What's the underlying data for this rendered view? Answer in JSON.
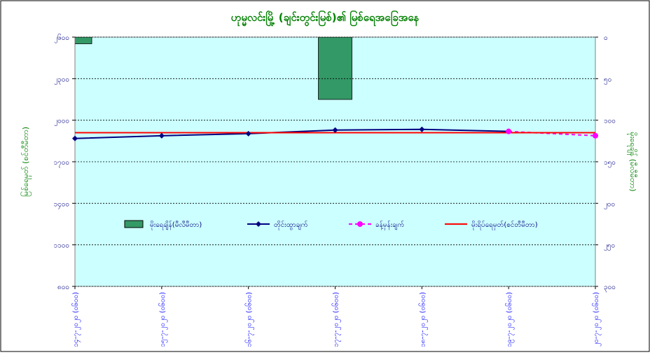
{
  "chart_data": {
    "type": "combo",
    "title": "ဟုမ္မလင်းမြို့ (ချင်းတွင်းမြစ်)၏ မြစ်ရေအခြေအနေ",
    "y_label": "မြစ်ရေမှတ် (စင်တီမီတာ)",
    "y2_label": "မိုးရေချိန် (မီလီမီတာ)",
    "categories": [
      "၁၄-၇-၂၀၂၀ (၀၆၀၀)",
      "၁၅-၇-၂၀၂၀ (၀၆၀၀)",
      "၁၆-၇-၂၀၂၀ (၀၆၀၀)",
      "၁၇-၇-၂၀၂၀ (၀၆၀၀)",
      "၁၈-၇-၂၀၂၀ (၀၆၀၀)",
      "၁၉-၇-၂၀၂၀ (၀၆၀၀)",
      "၂၀-၇-၂၀၂၀ (၀၆၀၀)"
    ],
    "ylim": [
      800,
      2600
    ],
    "yticks": [
      {
        "value": 800,
        "label": "၈၀၀"
      },
      {
        "value": 1100,
        "label": "၁၁၀၀"
      },
      {
        "value": 1400,
        "label": "၁၄၀၀"
      },
      {
        "value": 1700,
        "label": "၁၇၀၀"
      },
      {
        "value": 2000,
        "label": "၂၀၀၀"
      },
      {
        "value": 2300,
        "label": "၂၃၀၀"
      },
      {
        "value": 2600,
        "label": "၂၆၀၀"
      }
    ],
    "y2lim": [
      300,
      0
    ],
    "y2ticks": [
      {
        "value": 0,
        "label": "၀"
      },
      {
        "value": 50,
        "label": "၅၀"
      },
      {
        "value": 100,
        "label": "၁၀၀"
      },
      {
        "value": 150,
        "label": "၁၅၀"
      },
      {
        "value": 200,
        "label": "၂၀၀"
      },
      {
        "value": 250,
        "label": "၂၅၀"
      },
      {
        "value": 300,
        "label": "၃၀၀"
      }
    ],
    "grid": true,
    "series": [
      {
        "name": "မိုးရေချိန်(မီလီမီတာ)",
        "kind": "bar",
        "axis": "y2",
        "color": "#339966",
        "values": [
          8,
          null,
          null,
          75,
          null,
          null,
          null
        ]
      },
      {
        "name": "တိုင်းထွာချက်",
        "kind": "line",
        "color": "#000080",
        "values": [
          1868,
          1888,
          1903,
          1929,
          1934,
          1919,
          null
        ]
      },
      {
        "name": "ခန့်မှန်းချက်",
        "kind": "dashed",
        "color": "#ff00ff",
        "values": [
          null,
          null,
          null,
          null,
          null,
          1919,
          1888
        ]
      },
      {
        "name": "မိုးရိပ်ရေမှတ်(စင်တီမီတာ)",
        "kind": "flat",
        "color": "#ff0000",
        "values": [
          1910,
          1910,
          1910,
          1910,
          1910,
          1910,
          1910
        ]
      }
    ]
  }
}
